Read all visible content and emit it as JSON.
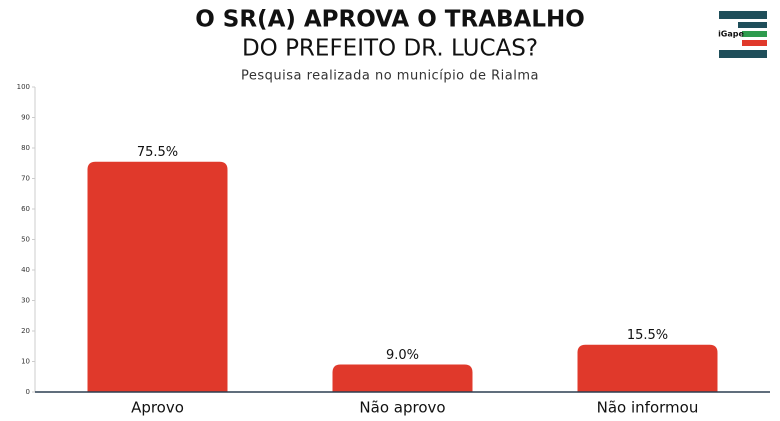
{
  "logo": "iGape",
  "chart_data": {
    "type": "bar",
    "title": [
      "O SR(A) APROVA O TRABALHO",
      "DO PREFEITO DR. LUCAS?"
    ],
    "subtitle": "Pesquisa realizada no município de Rialma",
    "categories": [
      "Aprovo",
      "Não aprovo",
      "Não informou"
    ],
    "values": [
      75.5,
      9.0,
      15.5
    ],
    "value_labels": [
      "75.5%",
      "9.0%",
      "15.5%"
    ],
    "color": "#e0392b",
    "ylim": [
      0,
      100
    ],
    "yticks": [
      0,
      10,
      20,
      30,
      40,
      50,
      60,
      70,
      80,
      90,
      100
    ]
  }
}
